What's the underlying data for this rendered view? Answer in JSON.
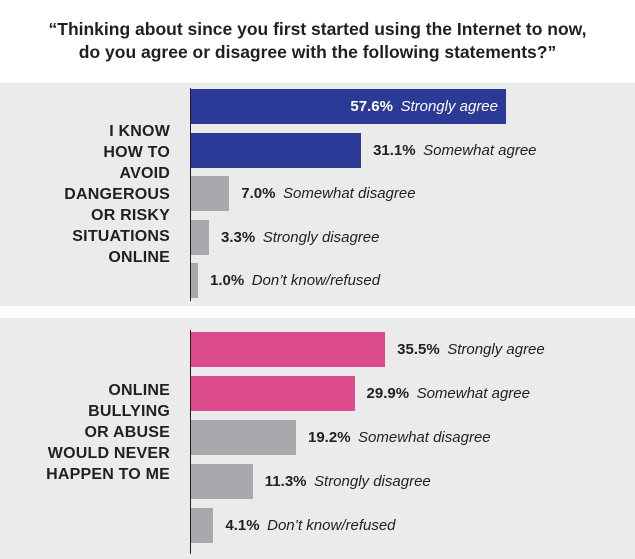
{
  "title_lines": [
    "“Thinking about since you first started using the Internet to now,",
    "do you agree or disagree with the following statements?”"
  ],
  "colors": {
    "panel_bg": "#ebebeb",
    "agree_1": "#2b3a96",
    "agree_2": "#dd4b8f",
    "other": "#a7a9ac"
  },
  "chart_data": [
    {
      "type": "bar",
      "orientation": "horizontal",
      "statement_lines": [
        "I KNOW",
        "HOW TO",
        "AVOID",
        "DANGEROUS",
        "OR RISKY",
        "SITUATIONS",
        "ONLINE"
      ],
      "categories": [
        "Strongly agree",
        "Somewhat agree",
        "Somewhat disagree",
        "Strongly disagree",
        "Don’t know/refused"
      ],
      "values": [
        57.6,
        31.1,
        7.0,
        3.3,
        1.0
      ],
      "value_labels": [
        "57.6%",
        "31.1%",
        "7.0%",
        "3.3%",
        "1.0%"
      ],
      "bar_colors": [
        "#2b3a96",
        "#2b3a96",
        "#a7a9ac",
        "#a7a9ac",
        "#a7a9ac"
      ],
      "xlim": [
        0,
        60
      ]
    },
    {
      "type": "bar",
      "orientation": "horizontal",
      "statement_lines": [
        "ONLINE",
        "BULLYING",
        "OR ABUSE",
        "WOULD NEVER",
        "HAPPEN TO ME"
      ],
      "categories": [
        "Strongly agree",
        "Somewhat agree",
        "Somewhat disagree",
        "Strongly disagree",
        "Don’t know/refused"
      ],
      "values": [
        35.5,
        29.9,
        19.2,
        11.3,
        4.1
      ],
      "value_labels": [
        "35.5%",
        "29.9%",
        "19.2%",
        "11.3%",
        "4.1%"
      ],
      "bar_colors": [
        "#dd4b8f",
        "#dd4b8f",
        "#a7a9ac",
        "#a7a9ac",
        "#a7a9ac"
      ],
      "xlim": [
        0,
        60
      ]
    }
  ]
}
